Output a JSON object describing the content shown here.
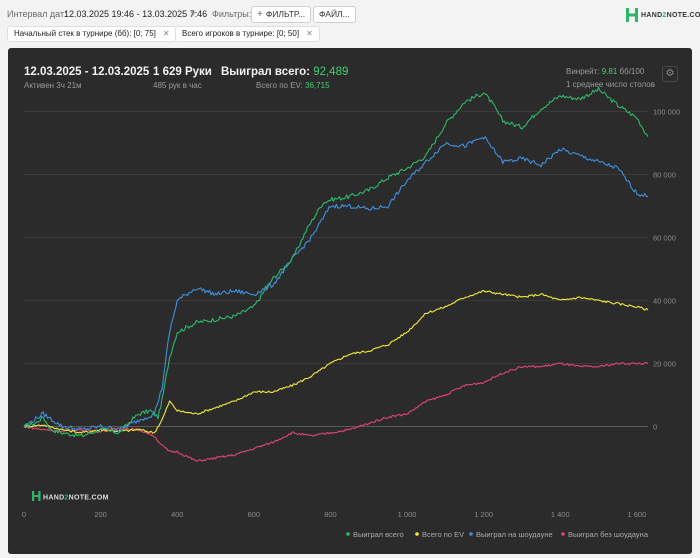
{
  "filters": {
    "interval_label": "Интервал дат:",
    "interval_value": "12.03.2025 19:46 - 13.03.2025 7:46",
    "filters_label": "Фильтры:",
    "filter_button": "ФИЛЬТР...",
    "file_button": "ФАЙЛ...",
    "chips": [
      "Начальный стек в турнире (бб): [0; 75]",
      "Всего игроков в турнире: [0; 50]"
    ]
  },
  "brand": {
    "logo_pre": "HAND",
    "logo_two": "2",
    "logo_post": "NOTE.COM"
  },
  "summary": {
    "date_range": "12.03.2025 - 12.03.2025",
    "active": "Активен 3ч 21м",
    "hands": "1 629 Руки",
    "hands_per_hour": "485 рук в час",
    "won_label": "Выиграл всего:",
    "won_value": "92,489",
    "ev_label": "Всего по EV:",
    "ev_value": "36,715",
    "winrate_label": "Винрейт:",
    "winrate_value": "9.81",
    "winrate_unit": "бб/100",
    "tables": "1 среднее число столов"
  },
  "colors": {
    "won": "#2fb86a",
    "ev": "#f2ea3a",
    "showdown": "#3f8fe0",
    "nonshowdown": "#e04472"
  },
  "chart_data": {
    "type": "line",
    "x_ticks": [
      "0",
      "200",
      "400",
      "600",
      "800",
      "1 000",
      "1 200",
      "1 400",
      "1 600"
    ],
    "y_ticks": [
      "0",
      "20 000",
      "40 000",
      "60 000",
      "80 000",
      "100 000"
    ],
    "xlim": [
      0,
      1629
    ],
    "ylim": [
      -10000,
      105000
    ],
    "grid": true,
    "legend_position": "bottom-right",
    "series": [
      {
        "name": "Выиграл всего",
        "color": "#2fb86a",
        "x": [
          0,
          30,
          50,
          70,
          100,
          150,
          200,
          250,
          280,
          300,
          330,
          350,
          360,
          380,
          400,
          450,
          500,
          550,
          600,
          650,
          700,
          740,
          780,
          800,
          850,
          900,
          950,
          1000,
          1050,
          1100,
          1150,
          1200,
          1220,
          1250,
          1300,
          1350,
          1400,
          1450,
          1500,
          1550,
          1600,
          1629
        ],
        "y": [
          0,
          1000,
          3000,
          -1000,
          -2000,
          -3000,
          -1000,
          -2000,
          2000,
          4000,
          5000,
          3000,
          8000,
          22000,
          30000,
          33000,
          34000,
          35000,
          38000,
          47000,
          53000,
          63000,
          71000,
          72000,
          73000,
          75000,
          79000,
          82000,
          86000,
          96000,
          103000,
          106000,
          103000,
          97000,
          95000,
          101000,
          105000,
          104000,
          107000,
          102000,
          98000,
          92000
        ]
      },
      {
        "name": "Всего по EV",
        "color": "#f2ea3a",
        "x": [
          0,
          50,
          100,
          150,
          200,
          250,
          300,
          340,
          360,
          380,
          400,
          450,
          500,
          550,
          600,
          650,
          700,
          750,
          800,
          850,
          900,
          950,
          1000,
          1050,
          1100,
          1150,
          1200,
          1250,
          1300,
          1350,
          1400,
          1450,
          1500,
          1550,
          1600,
          1629
        ],
        "y": [
          0,
          500,
          -1000,
          -2000,
          -1000,
          -1500,
          -1000,
          -2000,
          2000,
          8000,
          5000,
          4000,
          6000,
          8000,
          11000,
          11000,
          13000,
          16000,
          20000,
          23000,
          24000,
          26000,
          30000,
          36000,
          38000,
          41000,
          43000,
          42000,
          41000,
          42000,
          40000,
          41000,
          40000,
          39000,
          38000,
          37000
        ]
      },
      {
        "name": "Выиграл на шоудауне",
        "color": "#3f8fe0",
        "x": [
          0,
          50,
          100,
          150,
          200,
          250,
          300,
          340,
          360,
          380,
          400,
          450,
          500,
          550,
          600,
          650,
          700,
          750,
          800,
          850,
          900,
          950,
          1000,
          1050,
          1100,
          1150,
          1200,
          1250,
          1300,
          1350,
          1400,
          1450,
          1500,
          1550,
          1600,
          1629
        ],
        "y": [
          0,
          4000,
          0,
          -1000,
          0,
          -1000,
          2000,
          4000,
          12000,
          30000,
          40000,
          44000,
          42000,
          43000,
          42000,
          45000,
          53000,
          60000,
          70000,
          70000,
          69000,
          70000,
          78000,
          84000,
          90000,
          89000,
          92000,
          84000,
          85000,
          83000,
          88000,
          86000,
          84000,
          82000,
          74000,
          73000
        ]
      },
      {
        "name": "Выиграл без шоудауна",
        "color": "#e04472",
        "x": [
          0,
          50,
          100,
          150,
          200,
          250,
          300,
          340,
          360,
          380,
          400,
          450,
          500,
          550,
          600,
          650,
          700,
          750,
          800,
          850,
          900,
          950,
          1000,
          1050,
          1100,
          1150,
          1200,
          1250,
          1300,
          1350,
          1400,
          1450,
          1500,
          1550,
          1600,
          1629
        ],
        "y": [
          0,
          -1000,
          -1500,
          -1000,
          -1500,
          -500,
          -1000,
          -3000,
          -6000,
          -8000,
          -8000,
          -11000,
          -10000,
          -9000,
          -7000,
          -5000,
          -2000,
          -3000,
          -2000,
          -1000,
          1000,
          3000,
          4000,
          8000,
          10000,
          13000,
          14000,
          17000,
          19000,
          19000,
          20000,
          19000,
          19000,
          20000,
          20000,
          20000
        ]
      }
    ]
  }
}
